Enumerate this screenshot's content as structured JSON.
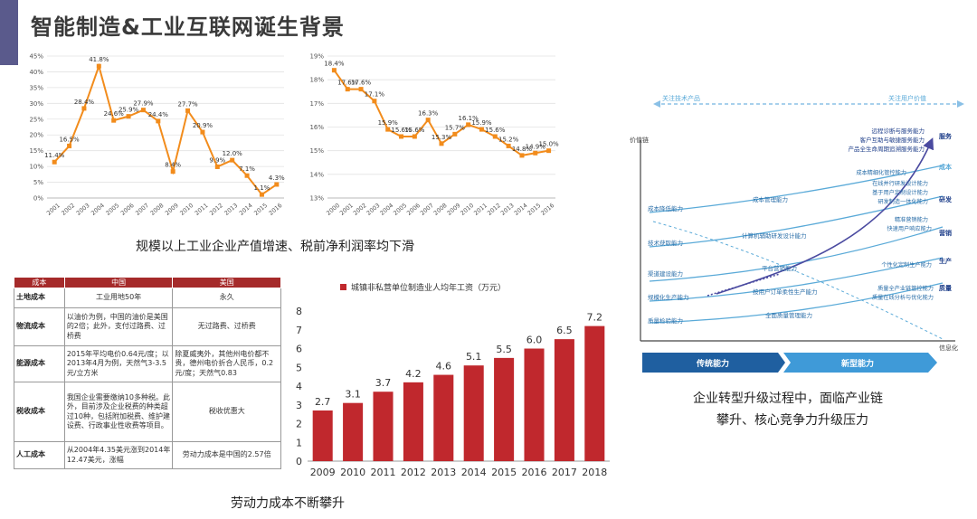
{
  "header": {
    "title": "智能制造&工业互联网诞生背景"
  },
  "captions": {
    "top_charts": "规模以上工业企业产值增速、税前净利润率均下滑",
    "table": "劳动力成本不断攀升",
    "diagram": "企业转型升级过程中，面临产业链攀升、核心竞争力升级压力",
    "diagram_line1": "企业转型升级过程中，面临产业链",
    "diagram_line2": "攀升、核心竞争力升级压力"
  },
  "cost_table": {
    "headers": [
      "成本",
      "中国",
      "美国"
    ],
    "rows": [
      {
        "name": "土地成本",
        "china": "工业用地50年",
        "usa": "永久"
      },
      {
        "name": "物流成本",
        "china": "以油价为例，中国的油价是美国的2倍；此外，支付过路费、过桥费",
        "usa": "无过路费、过桥费"
      },
      {
        "name": "能源成本",
        "china": "2015年平均电价0.64元/度；以2013年4月为例，天然气3-3.5元/立方米",
        "usa": "除夏威夷外，其他州电价都不贵，德州电价折合人民币，0.2元/度；天然气0.83"
      },
      {
        "name": "税收成本",
        "china": "我国企业需要缴纳10多种税。此外，目前涉及企业税费的种类超过10种，包括附加税费、维护建设费、行政事业性收费等项目。",
        "usa": "税收优惠大"
      },
      {
        "name": "人工成本",
        "china": "从2004年4.35美元涨到2014年12.47美元，涨幅",
        "usa": "劳动力成本是中国的2.57倍"
      }
    ]
  },
  "diagram": {
    "top_arrow_left": "关注技术产品",
    "top_arrow_right": "关注用户价值",
    "y_axis_label": "价值链",
    "x_axis_label": "信息化",
    "bottom_left": "传统能力",
    "bottom_right": "新型能力",
    "categories": [
      "服务",
      "成本",
      "研发",
      "营销",
      "生产",
      "质量"
    ],
    "traditional": [
      "成本降低能力",
      "技术获取能力",
      "渠道建设能力",
      "规模化生产能力",
      "质量检验能力"
    ],
    "middle": [
      "成本管理能力",
      "计算机辅助研发设计能力",
      "平台营销能力",
      "按用户订单柔性生产能力",
      "全面质量管理能力"
    ],
    "new_top": [
      "远程诊断与服务能力",
      "客户互助与敏捷服务能力",
      "产品全生命周期追溯服务能力"
    ],
    "new_right": [
      "成本精细化管控能力",
      "在线并行研发设计能力",
      "基于用户定制设计能力",
      "研发制造一体化能力",
      "精准营销能力",
      "快速用户响应能力",
      "个性化定制生产能力",
      "质量全产业链管控能力",
      "质量在线分析与优化能力"
    ],
    "colors": {
      "arrow": "#2f7fc4",
      "curve": "#4a4aa0",
      "line": "#5aaad8",
      "text": "#2a6ea8",
      "cat": "#1f3f8a"
    }
  },
  "chart_data": [
    {
      "type": "line",
      "title": "",
      "categories": [
        "2001",
        "2002",
        "2003",
        "2004",
        "2005",
        "2006",
        "2007",
        "2008",
        "2009",
        "2010",
        "2011",
        "2012",
        "2013",
        "2014",
        "2015",
        "2016"
      ],
      "values": [
        11.4,
        16.5,
        28.4,
        41.8,
        24.6,
        25.9,
        27.9,
        24.4,
        8.4,
        27.7,
        20.9,
        9.9,
        12.0,
        7.1,
        1.1,
        4.3
      ],
      "labels": [
        "11.4%",
        "16.5%",
        "28.4%",
        "41.8%",
        "24.6%",
        "25.9%",
        "27.9%",
        "24.4%",
        "8.4%",
        "27.7%",
        "20.9%",
        "9.9%",
        "12.0%",
        "7.1%",
        "1.1%",
        "4.3%"
      ],
      "ylim": [
        0,
        45
      ],
      "yticks": [
        "0%",
        "5%",
        "10%",
        "15%",
        "20%",
        "25%",
        "30%",
        "35%",
        "40%",
        "45%"
      ],
      "color": "#f28c1c"
    },
    {
      "type": "line",
      "title": "",
      "categories": [
        "2000",
        "2001",
        "2002",
        "2003",
        "2004",
        "2005",
        "2006",
        "2007",
        "2008",
        "2009",
        "2010",
        "2011",
        "2012",
        "2013",
        "2014",
        "2015",
        "2016"
      ],
      "values": [
        18.4,
        17.6,
        17.6,
        17.1,
        15.9,
        15.6,
        15.6,
        16.3,
        15.3,
        15.7,
        16.1,
        15.9,
        15.6,
        15.2,
        14.8,
        14.9,
        15.0
      ],
      "labels": [
        "18.4%",
        "17.6%",
        "17.6%",
        "17.1%",
        "15.9%",
        "15.6%",
        "15.6%",
        "16.3%",
        "15.3%",
        "15.7%",
        "16.1%",
        "15.9%",
        "15.6%",
        "15.2%",
        "14.8%",
        "14.9%",
        "15.0%"
      ],
      "ylim": [
        13,
        19
      ],
      "yticks": [
        "13%",
        "14%",
        "15%",
        "16%",
        "17%",
        "18%",
        "19%"
      ],
      "color": "#f28c1c"
    },
    {
      "type": "bar",
      "title": "城镇非私营单位制造业人均年工资（万元）",
      "categories": [
        "2009",
        "2010",
        "2011",
        "2012",
        "2013",
        "2014",
        "2015",
        "2016",
        "2017",
        "2018"
      ],
      "values": [
        2.7,
        3.1,
        3.7,
        4.2,
        4.6,
        5.1,
        5.5,
        6.0,
        6.5,
        7.2
      ],
      "labels": [
        "2.7",
        "3.1",
        "3.7",
        "4.2",
        "4.6",
        "5.1",
        "5.5",
        "6.0",
        "6.5",
        "7.2"
      ],
      "ylim": [
        0,
        8
      ],
      "yticks": [
        "0",
        "1",
        "2",
        "3",
        "4",
        "5",
        "6",
        "7",
        "8"
      ],
      "color": "#c0282d"
    }
  ]
}
